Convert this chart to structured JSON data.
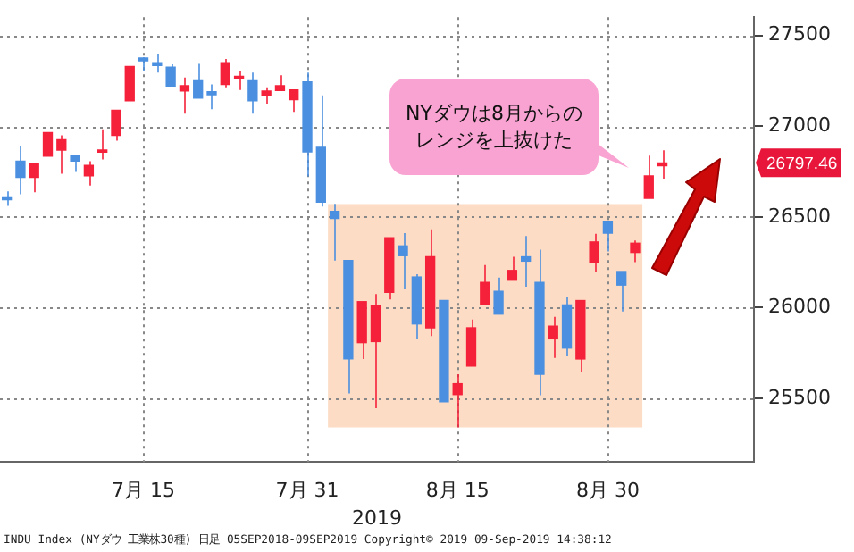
{
  "chart_data": {
    "type": "candlestick",
    "xlabel": "2019",
    "categories": [
      null,
      null,
      null,
      null,
      null,
      null,
      null,
      null,
      null,
      null,
      "7月 15",
      null,
      null,
      null,
      null,
      null,
      null,
      null,
      null,
      null,
      null,
      null,
      "7月 31",
      null,
      null,
      null,
      null,
      null,
      null,
      null,
      null,
      null,
      null,
      "8月 15",
      null,
      null,
      null,
      null,
      null,
      null,
      null,
      null,
      null,
      null,
      "8月 30",
      null,
      null,
      null,
      null
    ],
    "ohlc": [
      [
        26610,
        26640,
        26560,
        26595
      ],
      [
        26807,
        26889,
        26624,
        26717
      ],
      [
        26717,
        26792,
        26636,
        26792
      ],
      [
        26834,
        26966,
        26834,
        26964
      ],
      [
        26868,
        26949,
        26738,
        26925
      ],
      [
        26837,
        26843,
        26747,
        26807
      ],
      [
        26726,
        26807,
        26672,
        26783
      ],
      [
        26857,
        26982,
        26816,
        26869
      ],
      [
        26949,
        27087,
        26919,
        27087
      ],
      [
        27139,
        27328,
        27139,
        27328
      ],
      [
        27375,
        27380,
        27304,
        27360
      ],
      [
        27349,
        27395,
        27295,
        27334
      ],
      [
        27325,
        27340,
        27220,
        27220
      ],
      [
        27193,
        27268,
        27069,
        27223
      ],
      [
        27250,
        27343,
        27154,
        27154
      ],
      [
        27190,
        27229,
        27093,
        27172
      ],
      [
        27229,
        27370,
        27214,
        27349
      ],
      [
        27265,
        27304,
        27199,
        27274
      ],
      [
        27250,
        27295,
        27069,
        27139
      ],
      [
        27166,
        27214,
        27124,
        27193
      ],
      [
        27196,
        27280,
        27196,
        27223
      ],
      [
        27145,
        27199,
        27078,
        27199
      ],
      [
        27244,
        27295,
        26723,
        26858
      ],
      [
        26883,
        27169,
        26557,
        26581
      ],
      [
        26530,
        26572,
        26259,
        26491
      ],
      [
        26259,
        26259,
        25527,
        25717
      ],
      [
        25807,
        26033,
        25717,
        26033
      ],
      [
        25813,
        26075,
        25446,
        26009
      ],
      [
        26084,
        26385,
        26045,
        26385
      ],
      [
        26340,
        26410,
        26105,
        26286
      ],
      [
        26169,
        26184,
        25828,
        25910
      ],
      [
        25889,
        26431,
        25843,
        26280
      ],
      [
        26039,
        26039,
        25482,
        25482
      ],
      [
        25521,
        25633,
        25341,
        25581
      ],
      [
        25678,
        25934,
        25678,
        25889
      ],
      [
        26018,
        26235,
        26018,
        26139
      ],
      [
        26090,
        26166,
        25964,
        25964
      ],
      [
        26151,
        26280,
        26151,
        26205
      ],
      [
        26280,
        26395,
        26115,
        26256
      ],
      [
        26139,
        26319,
        25518,
        25633
      ],
      [
        25828,
        25949,
        25723,
        25898
      ],
      [
        26015,
        26060,
        25732,
        25777
      ],
      [
        25717,
        26039,
        25648,
        26039
      ],
      [
        26250,
        26407,
        26196,
        26362
      ],
      [
        26476,
        26476,
        26310,
        26410
      ],
      [
        26199,
        26199,
        25979,
        26124
      ],
      [
        26304,
        26370,
        26250,
        26355
      ],
      [
        26602,
        26837,
        26602,
        26726
      ],
      [
        26782,
        26867,
        26711,
        26797.46
      ]
    ],
    "colors": [
      "#4a8fe0",
      "#4a8fe0",
      "#f5203a",
      "#f5203a",
      "#f5203a",
      "#4a8fe0",
      "#f5203a",
      "#f5203a",
      "#f5203a",
      "#f5203a",
      "#4a8fe0",
      "#4a8fe0",
      "#4a8fe0",
      "#f5203a",
      "#4a8fe0",
      "#4a8fe0",
      "#f5203a",
      "#f5203a",
      "#4a8fe0",
      "#f5203a",
      "#f5203a",
      "#f5203a",
      "#4a8fe0",
      "#4a8fe0",
      "#4a8fe0",
      "#4a8fe0",
      "#f5203a",
      "#f5203a",
      "#f5203a",
      "#4a8fe0",
      "#4a8fe0",
      "#f5203a",
      "#4a8fe0",
      "#f5203a",
      "#f5203a",
      "#f5203a",
      "#4a8fe0",
      "#f5203a",
      "#4a8fe0",
      "#4a8fe0",
      "#f5203a",
      "#4a8fe0",
      "#f5203a",
      "#f5203a",
      "#4a8fe0",
      "#4a8fe0",
      "#f5203a",
      "#f5203a",
      "#f5203a"
    ],
    "ylim": [
      25150,
      27600
    ],
    "yticks": [
      25500,
      26000,
      26500,
      27000,
      27500
    ],
    "grid": true,
    "legend": false,
    "bands": [
      {
        "axis": "y",
        "from": 25340,
        "to": 26570,
        "color": "#fcdcc4"
      }
    ],
    "annotations": [
      "NYダウは8月からのレンジを上抜けた",
      "26797.46",
      "INDU Index (NYダウ 工業株30種) 日足 05SEP2018-09SEP2019 Copyright© 2019 09-Sep-2019 14:38:12"
    ]
  }
}
